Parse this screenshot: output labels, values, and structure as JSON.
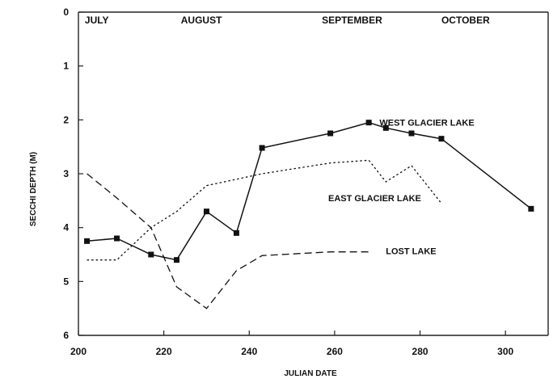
{
  "chart_data": {
    "type": "line",
    "xlabel": "JULIAN DATE",
    "ylabel": "SECCHI DEPTH (M)",
    "xlim": [
      200,
      310
    ],
    "ylim": [
      0,
      6
    ],
    "y_inverted": true,
    "x_ticks": [
      200,
      220,
      240,
      260,
      280,
      300
    ],
    "y_ticks": [
      0,
      1,
      2,
      3,
      4,
      5,
      6
    ],
    "grid": false,
    "months": [
      {
        "label": "JULY",
        "x": 201.5
      },
      {
        "label": "AUGUST",
        "x": 224
      },
      {
        "label": "SEPTEMBER",
        "x": 257
      },
      {
        "label": "OCTOBER",
        "x": 285
      }
    ],
    "series": [
      {
        "name": "WEST GLACIER LAKE",
        "style": "solid",
        "markers": true,
        "label_pos": {
          "x": 270.5,
          "y": 2.05
        },
        "x": [
          202,
          209,
          217,
          223,
          230,
          237,
          243,
          259,
          268,
          272,
          278,
          285,
          306
        ],
        "y": [
          4.25,
          4.2,
          4.5,
          4.6,
          3.7,
          4.1,
          2.52,
          2.25,
          2.05,
          2.15,
          2.25,
          2.35,
          3.65
        ]
      },
      {
        "name": "EAST GLACIER LAKE",
        "style": "dotted",
        "markers": false,
        "label_pos": {
          "x": 258.5,
          "y": 3.45
        },
        "x": [
          202,
          209,
          217,
          223,
          230,
          243,
          259,
          268,
          272,
          278,
          285
        ],
        "y": [
          4.6,
          4.6,
          4.0,
          3.7,
          3.22,
          3.0,
          2.8,
          2.75,
          3.15,
          2.85,
          3.55
        ]
      },
      {
        "name": "LOST LAKE",
        "style": "dashed",
        "markers": false,
        "label_pos": {
          "x": 272,
          "y": 4.43
        },
        "x": [
          202,
          209,
          217,
          223,
          230,
          237,
          243,
          259,
          268
        ],
        "y": [
          3.0,
          3.45,
          4.0,
          5.1,
          5.5,
          4.8,
          4.52,
          4.45,
          4.45
        ]
      }
    ]
  }
}
